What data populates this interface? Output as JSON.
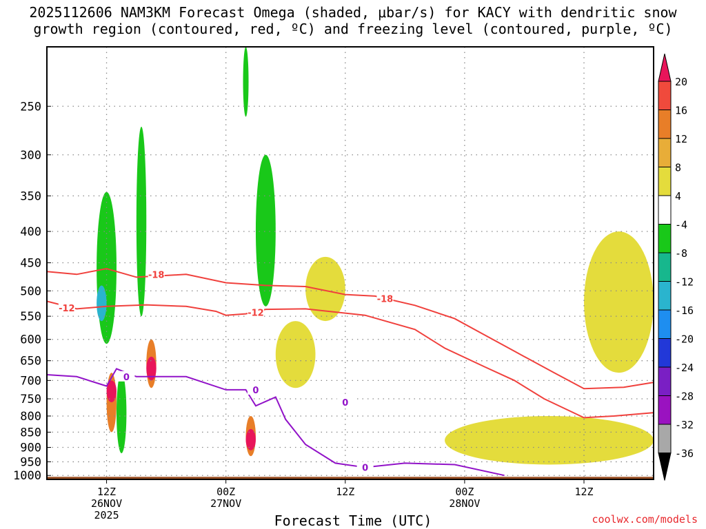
{
  "title_line1": "2025112606 NAM3KM Forecast Omega (shaded, μbar/s) for KACY with dendritic snow",
  "title_line2": "growth region (contoured, red, ºC) and freezing level (contoured, purple, ºC)",
  "xlabel": "Forecast Time (UTC)",
  "credit": "coolwx.com/models",
  "chart_data": {
    "type": "heatmap",
    "title": "2025112606 NAM3KM Forecast Omega (shaded, μbar/s) for KACY with dendritic snow growth region (contoured, red, ºC) and freezing level (contoured, purple, ºC)",
    "xlabel": "Forecast Time (UTC)",
    "ylabel": "",
    "y_ticks": [
      250,
      300,
      350,
      400,
      450,
      500,
      550,
      600,
      650,
      700,
      750,
      800,
      850,
      900,
      950,
      1000
    ],
    "y_range": [
      200,
      1015
    ],
    "y_scale": "log-pressure (inverted)",
    "x_range": [
      "2025-11-26T06Z",
      "2025-11-28T19Z"
    ],
    "x_ticks": [
      {
        "time": "2025-11-26T12Z",
        "label1": "12Z",
        "label2": "26NOV",
        "label3": "2025"
      },
      {
        "time": "2025-11-27T00Z",
        "label1": "00Z",
        "label2": "27NOV",
        "label3": ""
      },
      {
        "time": "2025-11-27T12Z",
        "label1": "12Z",
        "label2": "",
        "label3": ""
      },
      {
        "time": "2025-11-28T00Z",
        "label1": "00Z",
        "label2": "28NOV",
        "label3": ""
      },
      {
        "time": "2025-11-28T12Z",
        "label1": "12Z",
        "label2": "",
        "label3": ""
      }
    ],
    "grid": true,
    "colorbar": {
      "labels": [
        "20",
        "16",
        "12",
        "8",
        "4",
        "-4",
        "-8",
        "-12",
        "-16",
        "-20",
        "-24",
        "-28",
        "-32",
        "-36"
      ],
      "colors": [
        "#e8155a",
        "#f04a3c",
        "#e87e28",
        "#e8ad38",
        "#e4dc3c",
        "#ffffff",
        "#19c819",
        "#17b78d",
        "#2ab4ce",
        "#1e8ef0",
        "#2238d8",
        "#7a1fc4",
        "#9a12c0",
        "#a8a8a8",
        "#000000"
      ]
    },
    "contour_labels": {
      "dendritic": [
        "-18",
        "-12",
        "-12",
        "-18"
      ],
      "freezing": [
        "0",
        "0",
        "0",
        "0"
      ]
    },
    "dendritic_minus12_curve": [
      [
        "2025-11-26T06Z",
        520
      ],
      [
        "2025-11-26T09Z",
        535
      ],
      [
        "2025-11-26T12Z",
        530
      ],
      [
        "2025-11-26T16Z",
        527
      ],
      [
        "2025-11-26T20Z",
        530
      ],
      [
        "2025-11-26T23Z",
        540
      ],
      [
        "2025-11-27T00Z",
        548
      ],
      [
        "2025-11-27T02Z",
        545
      ],
      [
        "2025-11-27T04Z",
        536
      ],
      [
        "2025-11-27T08Z",
        535
      ],
      [
        "2025-11-27T14Z",
        548
      ],
      [
        "2025-11-27T19Z",
        578
      ],
      [
        "2025-11-27T22Z",
        620
      ],
      [
        "2025-11-28T02Z",
        665
      ],
      [
        "2025-11-28T05Z",
        700
      ],
      [
        "2025-11-28T08Z",
        750
      ],
      [
        "2025-11-28T12Z",
        805
      ],
      [
        "2025-11-28T15Z",
        800
      ],
      [
        "2025-11-28T19Z",
        790
      ]
    ],
    "dendritic_minus18_curve": [
      [
        "2025-11-26T06Z",
        465
      ],
      [
        "2025-11-26T09Z",
        470
      ],
      [
        "2025-11-26T12Z",
        460
      ],
      [
        "2025-11-26T15Z",
        475
      ],
      [
        "2025-11-26T20Z",
        470
      ],
      [
        "2025-11-27T00Z",
        485
      ],
      [
        "2025-11-27T04Z",
        490
      ],
      [
        "2025-11-27T08Z",
        492
      ],
      [
        "2025-11-27T12Z",
        507
      ],
      [
        "2025-11-27T15Z",
        510
      ],
      [
        "2025-11-27T19Z",
        528
      ],
      [
        "2025-11-27T23Z",
        555
      ],
      [
        "2025-11-28T02Z",
        590
      ],
      [
        "2025-11-28T06Z",
        640
      ],
      [
        "2025-11-28T09Z",
        680
      ],
      [
        "2025-11-28T12Z",
        722
      ],
      [
        "2025-11-28T16Z",
        718
      ],
      [
        "2025-11-28T19Z",
        705
      ]
    ],
    "freezing_level_curve": [
      [
        "2025-11-26T06Z",
        685
      ],
      [
        "2025-11-26T09Z",
        690
      ],
      [
        "2025-11-26T12Z",
        715
      ],
      [
        "2025-11-26T13Z",
        670
      ],
      [
        "2025-11-26T15Z",
        690
      ],
      [
        "2025-11-26T20Z",
        690
      ],
      [
        "2025-11-27T00Z",
        725
      ],
      [
        "2025-11-27T02Z",
        725
      ],
      [
        "2025-11-27T03Z",
        770
      ],
      [
        "2025-11-27T05Z",
        745
      ],
      [
        "2025-11-27T06Z",
        810
      ],
      [
        "2025-11-27T08Z",
        890
      ],
      [
        "2025-11-27T11Z",
        955
      ],
      [
        "2025-11-27T14Z",
        970
      ],
      [
        "2025-11-27T18Z",
        955
      ],
      [
        "2025-11-27T23Z",
        960
      ],
      [
        "2025-11-28T04Z",
        1000
      ]
    ],
    "omega_regions": [
      {
        "value": -8,
        "time_range": [
          "2025-11-26T11Z",
          "2025-11-26T13Z"
        ],
        "p_range": [
          345,
          610
        ]
      },
      {
        "value": -16,
        "time_range": [
          "2025-11-26T11Z",
          "2025-11-26T12Z"
        ],
        "p_range": [
          490,
          560
        ]
      },
      {
        "value": -8,
        "time_range": [
          "2025-11-26T15Z",
          "2025-11-26T16Z"
        ],
        "p_range": [
          270,
          550
        ]
      },
      {
        "value": -8,
        "time_range": [
          "2025-11-27T02Z",
          "2025-11-27T02Z"
        ],
        "p_range": [
          200,
          260
        ]
      },
      {
        "value": -8,
        "time_range": [
          "2025-11-27T03Z",
          "2025-11-27T05Z"
        ],
        "p_range": [
          300,
          530
        ]
      },
      {
        "value": -8,
        "time_range": [
          "2025-11-26T13Z",
          "2025-11-26T14Z"
        ],
        "p_range": [
          680,
          920
        ]
      },
      {
        "value": 12,
        "time_range": [
          "2025-11-26T12Z",
          "2025-11-26T13Z"
        ],
        "p_range": [
          680,
          850
        ]
      },
      {
        "value": 20,
        "time_range": [
          "2025-11-26T12Z",
          "2025-11-26T13Z"
        ],
        "p_range": [
          700,
          760
        ]
      },
      {
        "value": 12,
        "time_range": [
          "2025-11-26T16Z",
          "2025-11-26T17Z"
        ],
        "p_range": [
          600,
          720
        ]
      },
      {
        "value": 20,
        "time_range": [
          "2025-11-26T16Z",
          "2025-11-26T17Z"
        ],
        "p_range": [
          640,
          700
        ]
      },
      {
        "value": 12,
        "time_range": [
          "2025-11-27T02Z",
          "2025-11-27T03Z"
        ],
        "p_range": [
          800,
          930
        ]
      },
      {
        "value": 20,
        "time_range": [
          "2025-11-27T02Z",
          "2025-11-27T03Z"
        ],
        "p_range": [
          840,
          910
        ]
      },
      {
        "value": 4,
        "time_range": [
          "2025-11-27T05Z",
          "2025-11-27T09Z"
        ],
        "p_range": [
          560,
          720
        ]
      },
      {
        "value": 4,
        "time_range": [
          "2025-11-27T08Z",
          "2025-11-27T12Z"
        ],
        "p_range": [
          440,
          560
        ]
      },
      {
        "value": 4,
        "time_range": [
          "2025-11-28T12Z",
          "2025-11-28T19Z"
        ],
        "p_range": [
          400,
          680
        ]
      },
      {
        "value": 4,
        "time_range": [
          "2025-11-27T22Z",
          "2025-11-28T19Z"
        ],
        "p_range": [
          800,
          960
        ]
      }
    ]
  }
}
